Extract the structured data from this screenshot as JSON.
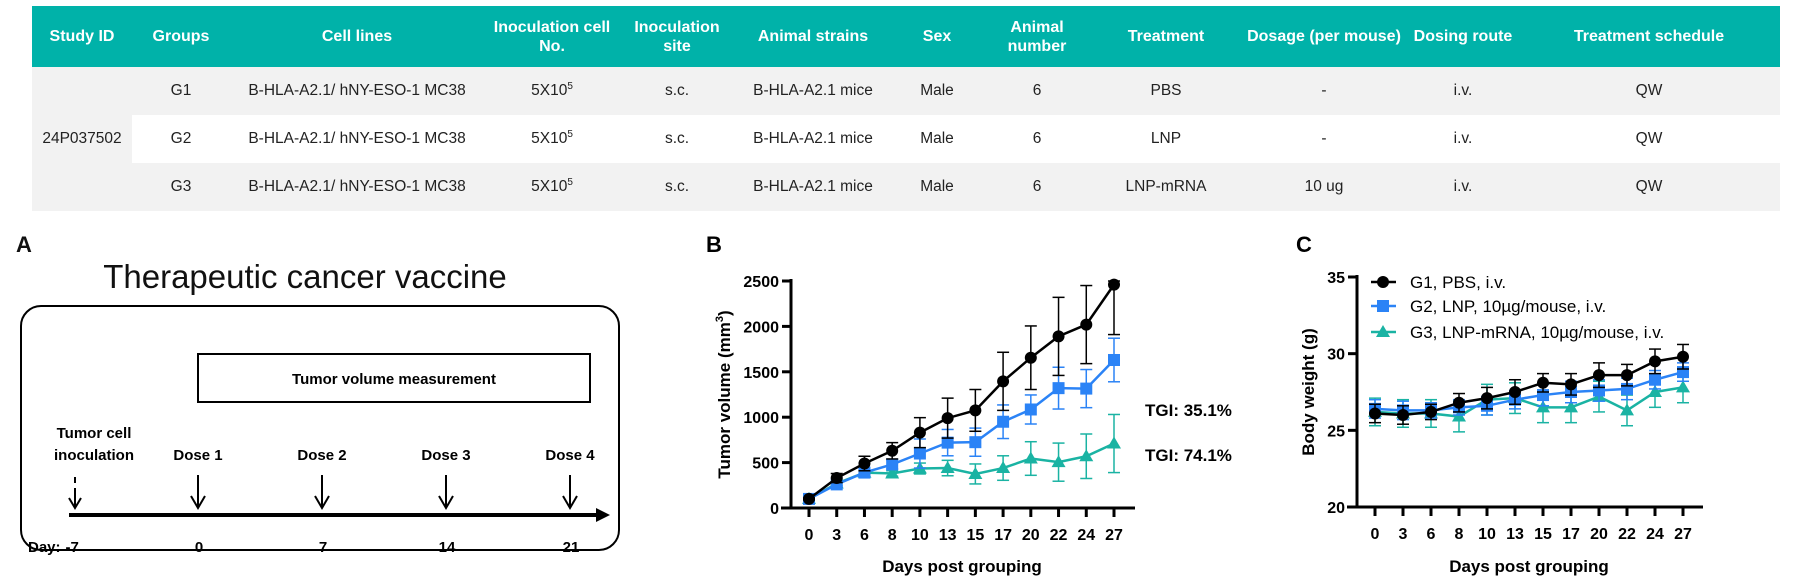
{
  "table": {
    "headers": [
      "Study ID",
      "Groups",
      "Cell lines",
      "Inoculation cell No.",
      "Inoculation site",
      "Animal strains",
      "Sex",
      "Animal number",
      "Treatment",
      "Dosage (per mouse)",
      "Dosing route",
      "Treatment schedule"
    ],
    "study_id": "24P037502",
    "rows": [
      {
        "group": "G1",
        "cell_line": "B-HLA-A2.1/ hNY-ESO-1 MC38",
        "cell_no": "5X10",
        "cell_no_exp": "5",
        "site": "s.c.",
        "strain": "B-HLA-A2.1 mice",
        "sex": "Male",
        "number": "6",
        "treatment": "PBS",
        "dosage": "-",
        "route": "i.v.",
        "schedule": "QW"
      },
      {
        "group": "G2",
        "cell_line": "B-HLA-A2.1/ hNY-ESO-1 MC38",
        "cell_no": "5X10",
        "cell_no_exp": "5",
        "site": "s.c.",
        "strain": "B-HLA-A2.1 mice",
        "sex": "Male",
        "number": "6",
        "treatment": "LNP",
        "dosage": "-",
        "route": "i.v.",
        "schedule": "QW"
      },
      {
        "group": "G3",
        "cell_line": "B-HLA-A2.1/ hNY-ESO-1 MC38",
        "cell_no": "5X10",
        "cell_no_exp": "5",
        "site": "s.c.",
        "strain": "B-HLA-A2.1 mice",
        "sex": "Male",
        "number": "6",
        "treatment": "LNP-mRNA",
        "dosage": "10 ug",
        "route": "i.v.",
        "schedule": "QW"
      }
    ],
    "colors": {
      "header_bg": "#00b2a9",
      "row_alt": "#f2f2f2"
    }
  },
  "panel_a": {
    "letter": "A",
    "title": "Therapeutic cancer vaccine",
    "measurement": "Tumor volume measurement",
    "inoculation": [
      "Tumor cell",
      "inoculation"
    ],
    "doses": [
      "Dose 1",
      "Dose 2",
      "Dose 3",
      "Dose 4"
    ],
    "day_prefix": "Day:",
    "days": [
      "-7",
      "0",
      "7",
      "14",
      "21"
    ]
  },
  "chart_data": [
    {
      "panel": "B",
      "type": "line",
      "xlabel": "Days post grouping",
      "ylabel": "Tumor volume (mm",
      "ylabel_sup": "3",
      "ylabel_end": ")",
      "categories": [
        "0",
        "3",
        "6",
        "8",
        "10",
        "13",
        "15",
        "17",
        "20",
        "22",
        "24",
        "27"
      ],
      "ylim": [
        0,
        2500
      ],
      "yticks": [
        0,
        500,
        1000,
        1500,
        2000,
        2500
      ],
      "grid": false,
      "series": [
        {
          "name": "G1, PBS, i.v.",
          "color": "#000000",
          "marker": "circle",
          "values": [
            100,
            330,
            490,
            630,
            830,
            990,
            1075,
            1395,
            1655,
            1890,
            2020,
            2460
          ],
          "error": [
            10,
            50,
            80,
            90,
            165,
            220,
            230,
            320,
            350,
            430,
            430,
            550
          ]
        },
        {
          "name": "G2, LNP, 10µg/mouse, i.v.",
          "color": "#2b83f6",
          "marker": "square",
          "values": [
            100,
            260,
            390,
            480,
            600,
            720,
            725,
            950,
            1085,
            1320,
            1315,
            1630
          ],
          "error": [
            10,
            20,
            30,
            50,
            160,
            145,
            155,
            185,
            160,
            230,
            210,
            240
          ]
        },
        {
          "name": "G3, LNP-mRNA, 10µg/mouse, i.v.",
          "color": "#1ab3a3",
          "marker": "triangle",
          "values": [
            100,
            270,
            390,
            380,
            435,
            440,
            375,
            440,
            545,
            505,
            570,
            710
          ],
          "error": [
            10,
            20,
            20,
            30,
            60,
            85,
            110,
            135,
            185,
            210,
            245,
            320
          ]
        }
      ],
      "annotations": [
        "TGI: 35.1%",
        "TGI: 74.1%"
      ]
    },
    {
      "panel": "C",
      "type": "line",
      "xlabel": "Days post grouping",
      "ylabel": "Body weight (g)",
      "categories": [
        "0",
        "3",
        "6",
        "8",
        "10",
        "13",
        "15",
        "17",
        "20",
        "22",
        "24",
        "27"
      ],
      "ylim": [
        20,
        35
      ],
      "yticks": [
        20,
        25,
        30,
        35
      ],
      "grid": false,
      "legend": "top-left",
      "series": [
        {
          "name": "G1, PBS, i.v.",
          "color": "#000000",
          "marker": "circle",
          "values": [
            26.1,
            26.0,
            26.2,
            26.8,
            27.1,
            27.5,
            28.1,
            28.0,
            28.6,
            28.6,
            29.5,
            29.8
          ],
          "error": [
            0.6,
            0.6,
            0.5,
            0.6,
            0.7,
            0.8,
            0.6,
            0.7,
            0.8,
            0.7,
            0.8,
            0.8
          ]
        },
        {
          "name": "G2, LNP, 10µg/mouse, i.v.",
          "color": "#2b83f6",
          "marker": "square",
          "values": [
            26.4,
            26.3,
            26.3,
            26.5,
            26.6,
            27.0,
            27.3,
            27.5,
            27.6,
            27.7,
            28.3,
            28.8
          ],
          "error": [
            0.6,
            0.6,
            0.5,
            0.5,
            0.6,
            0.6,
            0.7,
            0.7,
            0.7,
            0.7,
            0.6,
            0.6
          ]
        },
        {
          "name": "G3, LNP-mRNA, 10µg/mouse, i.v.",
          "color": "#1ab3a3",
          "marker": "triangle",
          "values": [
            26.2,
            26.1,
            26.1,
            25.9,
            27.0,
            27.1,
            26.5,
            26.5,
            27.2,
            26.3,
            27.5,
            27.8
          ],
          "error": [
            0.9,
            0.9,
            0.9,
            1.0,
            1.0,
            1.0,
            1.0,
            1.0,
            1.0,
            1.0,
            1.0,
            1.0
          ]
        }
      ]
    }
  ]
}
